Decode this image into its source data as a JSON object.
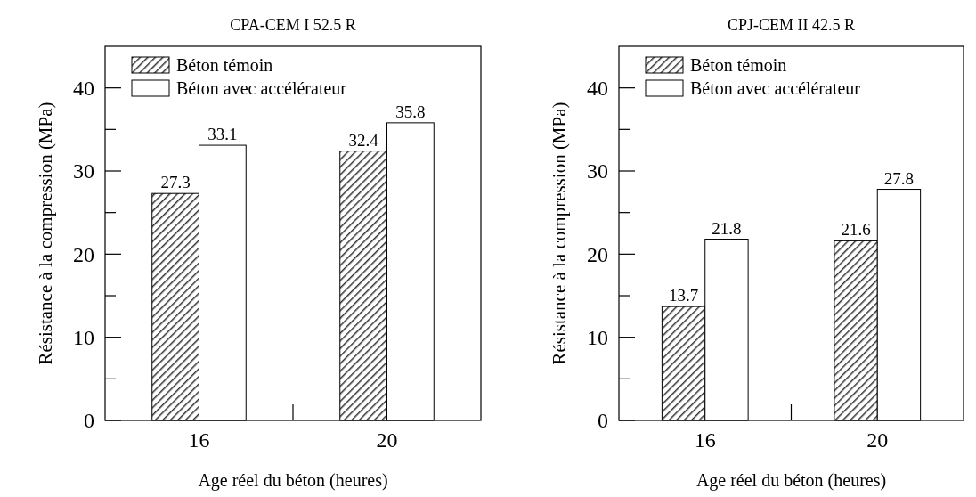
{
  "chart_data": [
    {
      "type": "bar",
      "title": "CPA-CEM I 52.5 R",
      "xlabel": "Age réel du béton (heures)",
      "ylabel": "Résistance à la compression (MPa)",
      "categories": [
        "16",
        "20"
      ],
      "series": [
        {
          "name": "Béton témoin",
          "color": "#333333",
          "values": [
            27.3,
            32.4
          ]
        },
        {
          "name": "Béton avec accélérateur",
          "color": "#ffffff",
          "values": [
            33.1,
            35.8
          ]
        }
      ],
      "ylim": [
        0,
        45
      ],
      "yticks": [
        0,
        {
          "value": 5,
          "label": null
        },
        10,
        {
          "value": 15,
          "label": null
        },
        20,
        {
          "value": 25,
          "label": null
        },
        30,
        {
          "value": 35,
          "label": null
        },
        40
      ],
      "data_labels": true,
      "legend": "top left",
      "grid": false
    },
    {
      "type": "bar",
      "title": "CPJ-CEM II 42.5 R",
      "xlabel": "Age réel du béton (heures)",
      "ylabel": "Résistance à la compression (MPa)",
      "categories": [
        "16",
        "20"
      ],
      "series": [
        {
          "name": "Béton témoin",
          "color": "#333333",
          "values": [
            13.7,
            21.6
          ]
        },
        {
          "name": "Béton avec accélérateur",
          "color": "#ffffff",
          "values": [
            21.8,
            27.8
          ]
        }
      ],
      "ylim": [
        0,
        45
      ],
      "yticks": [
        0,
        {
          "value": 5,
          "label": null
        },
        10,
        {
          "value": 15,
          "label": null
        },
        20,
        {
          "value": 25,
          "label": null
        },
        30,
        {
          "value": 35,
          "label": null
        },
        40
      ],
      "data_labels": true,
      "legend": "top left",
      "grid": false
    }
  ]
}
